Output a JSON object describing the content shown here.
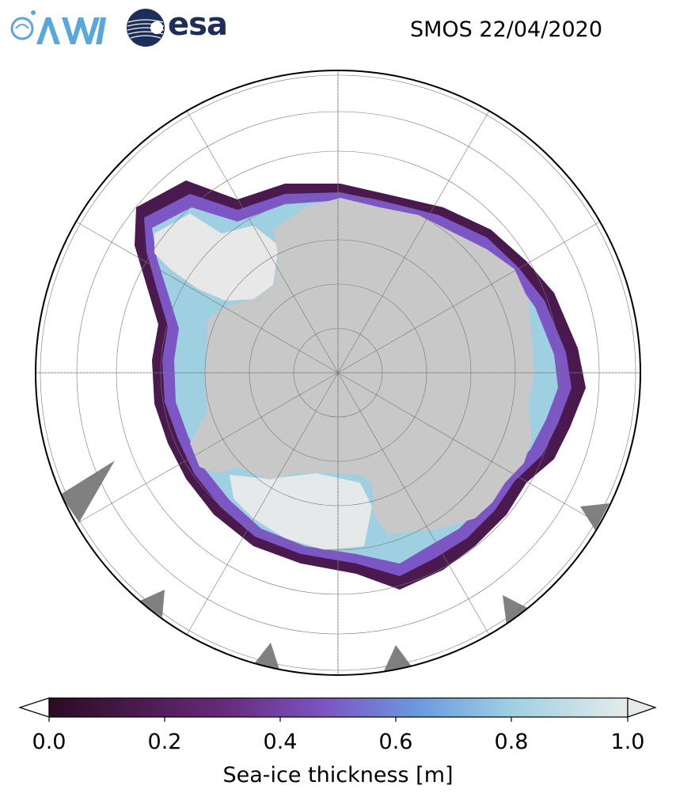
{
  "header": {
    "logo_left": "AWI",
    "logo_right": "esa",
    "title": "SMOS 22/04/2020"
  },
  "map": {
    "projection": "south-polar-stereographic",
    "land_color": "#c8c8c8",
    "ice_shelf_color": "#e8e8e8",
    "no_data_color": "#808080",
    "ocean_color": "#ffffff",
    "graticule": true
  },
  "colorbar": {
    "label": "Sea-ice thickness [m]",
    "ticks": [
      "0.0",
      "0.2",
      "0.4",
      "0.6",
      "0.8",
      "1.0"
    ],
    "range": [
      0.0,
      1.0
    ],
    "extend": "both",
    "colors": [
      "#2d0a22",
      "#4a1a4e",
      "#652a7a",
      "#7c56c5",
      "#6b9ae0",
      "#9fd0e2",
      "#e5ebeb"
    ]
  }
}
